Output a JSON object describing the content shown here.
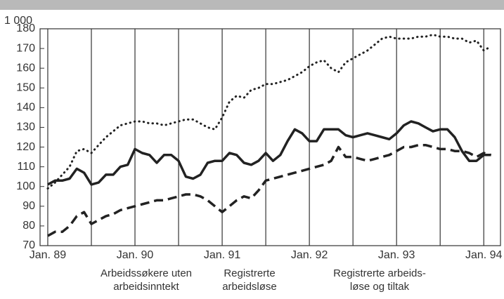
{
  "chart_data": {
    "type": "line",
    "unit_label": "1 000",
    "x": [
      0,
      1,
      2,
      3,
      4,
      5,
      6,
      7,
      8,
      9,
      10,
      11,
      12,
      13,
      14,
      15,
      16,
      17,
      18,
      19,
      20,
      21,
      22,
      23,
      24,
      25,
      26,
      27,
      28,
      29,
      30,
      31,
      32,
      33,
      34,
      35,
      36,
      37,
      38,
      39,
      40,
      41,
      42,
      43,
      44,
      45,
      46,
      47,
      48,
      49,
      50,
      51,
      52,
      53,
      54,
      55,
      56,
      57,
      58,
      59,
      60,
      61
    ],
    "series": [
      {
        "name": "Arbeidssøkere uten\narbeidsinntekt",
        "color": "#222",
        "dash": "solid",
        "values": [
          101,
          103,
          103,
          104,
          109,
          107,
          101,
          102,
          106,
          106,
          110,
          111,
          119,
          117,
          116,
          112,
          116,
          116,
          113,
          105,
          104,
          106,
          112,
          113,
          113,
          117,
          116,
          112,
          111,
          113,
          117,
          113,
          116,
          123,
          129,
          127,
          123,
          123,
          129,
          129,
          129,
          126,
          125,
          126,
          127,
          126,
          125,
          124,
          127,
          131,
          133,
          132,
          130,
          128,
          129,
          129,
          125,
          118,
          113,
          113,
          116,
          116
        ]
      },
      {
        "name": "Registrerte\narbeidsløse",
        "color": "#222",
        "dash": "dashed",
        "values": [
          75,
          77,
          77,
          80,
          85,
          87,
          81,
          83,
          85,
          86,
          88,
          89,
          90,
          91,
          92,
          93,
          93,
          94,
          95,
          96,
          96,
          95,
          93,
          90,
          87,
          90,
          93,
          95,
          94,
          98,
          103,
          104,
          105,
          106,
          107,
          108,
          109,
          110,
          111,
          113,
          120,
          115,
          115,
          114,
          113,
          114,
          115,
          116,
          118,
          120,
          120,
          121,
          121,
          120,
          119,
          119,
          118,
          118,
          117,
          115,
          117,
          116
        ]
      },
      {
        "name": "Registrerte arbeids-\nløse og tiltak",
        "color": "#222",
        "dash": "dotted",
        "values": [
          99,
          102,
          106,
          110,
          118,
          119,
          117,
          121,
          125,
          128,
          131,
          132,
          133,
          133,
          132,
          132,
          131,
          132,
          133,
          134,
          134,
          132,
          130,
          129,
          135,
          143,
          146,
          145,
          149,
          150,
          152,
          152,
          153,
          154,
          156,
          158,
          161,
          163,
          164,
          160,
          158,
          163,
          165,
          167,
          169,
          172,
          175,
          176,
          175,
          175,
          175,
          176,
          176,
          177,
          176,
          176,
          175,
          175,
          173,
          174,
          169,
          171
        ]
      }
    ],
    "xlim": [
      -1.06,
      62.3
    ],
    "xticks": [
      {
        "value": 0,
        "label": "Jan. 89"
      },
      {
        "value": 12,
        "label": "Jan. 90"
      },
      {
        "value": 24,
        "label": "Jan. 91"
      },
      {
        "value": 36,
        "label": "Jan. 92"
      },
      {
        "value": 48,
        "label": "Jan. 93"
      },
      {
        "value": 60,
        "label": "Jan. 94"
      }
    ],
    "vgrid": [
      0,
      6,
      12,
      18,
      24,
      30,
      36,
      42,
      48,
      54,
      60
    ],
    "ylim": [
      70,
      180
    ],
    "yticks": [
      70,
      80,
      90,
      100,
      110,
      120,
      130,
      140,
      150,
      160,
      170,
      180
    ]
  }
}
